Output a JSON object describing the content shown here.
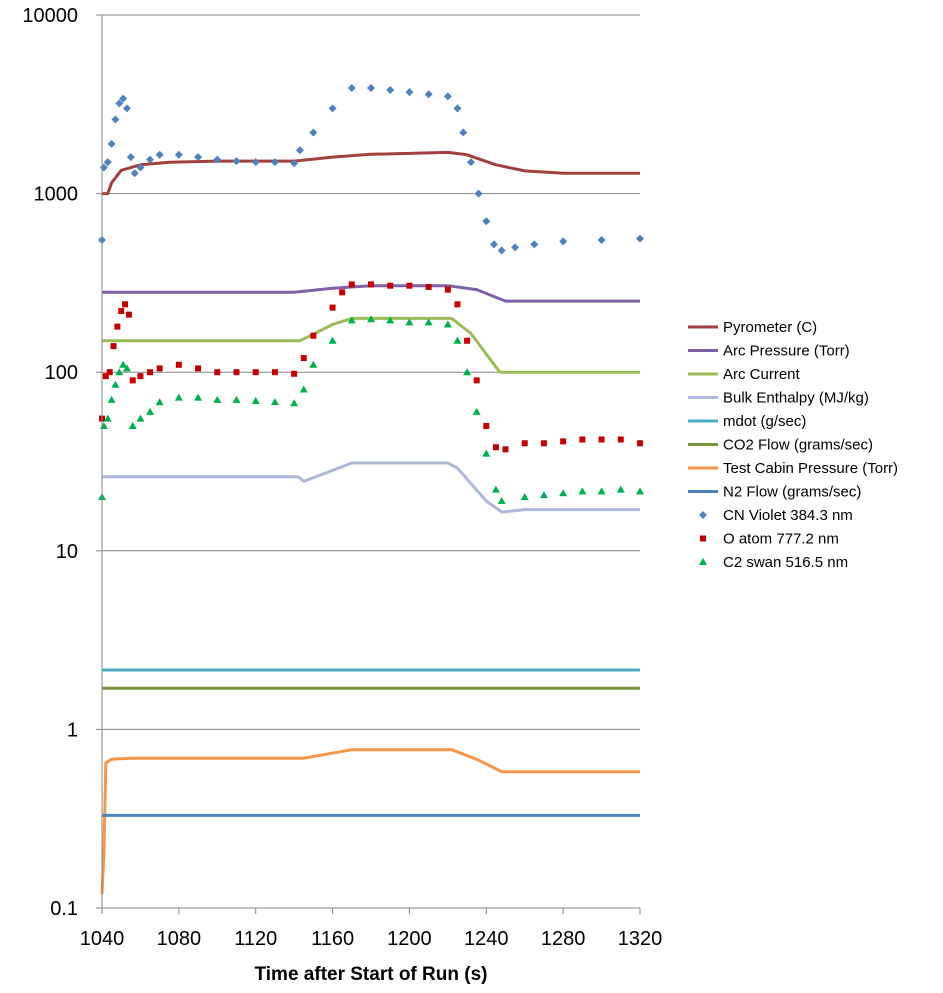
{
  "chart_data": {
    "type": "line",
    "title": "",
    "xlabel": "Time after Start of Run (s)",
    "ylabel": "",
    "xlim": [
      1040,
      1320
    ],
    "ylim": [
      0.1,
      10000
    ],
    "yscale": "log",
    "grid": "horizontal",
    "legend_position": "right",
    "x_ticks": [
      "1040",
      "1080",
      "1120",
      "1160",
      "1200",
      "1240",
      "1280",
      "1320"
    ],
    "y_ticks": [
      "0.1",
      "1",
      "10",
      "100",
      "1000",
      "10000"
    ],
    "series": [
      {
        "name": "Pyrometer (C)",
        "kind": "line",
        "color": "#A0413D",
        "points": [
          [
            1040,
            1000
          ],
          [
            1043,
            1000
          ],
          [
            1045,
            1150
          ],
          [
            1050,
            1350
          ],
          [
            1060,
            1450
          ],
          [
            1075,
            1500
          ],
          [
            1100,
            1520
          ],
          [
            1140,
            1520
          ],
          [
            1160,
            1600
          ],
          [
            1180,
            1660
          ],
          [
            1200,
            1680
          ],
          [
            1220,
            1700
          ],
          [
            1230,
            1650
          ],
          [
            1245,
            1450
          ],
          [
            1260,
            1340
          ],
          [
            1280,
            1300
          ],
          [
            1320,
            1300
          ]
        ]
      },
      {
        "name": "Arc Pressure (Torr)",
        "kind": "line",
        "color": "#7F5FA8",
        "points": [
          [
            1040,
            280
          ],
          [
            1140,
            280
          ],
          [
            1160,
            295
          ],
          [
            1180,
            305
          ],
          [
            1220,
            305
          ],
          [
            1235,
            290
          ],
          [
            1250,
            250
          ],
          [
            1320,
            250
          ]
        ]
      },
      {
        "name": "Arc Current",
        "kind": "line",
        "color": "#9BBB59",
        "points": [
          [
            1040,
            150
          ],
          [
            1143,
            150
          ],
          [
            1160,
            185
          ],
          [
            1170,
            200
          ],
          [
            1222,
            200
          ],
          [
            1232,
            165
          ],
          [
            1247,
            100
          ],
          [
            1320,
            100
          ]
        ]
      },
      {
        "name": "Bulk Enthalpy (MJ/kg)",
        "kind": "line",
        "color": "#AEB8D8",
        "points": [
          [
            1040,
            26
          ],
          [
            1142,
            26
          ],
          [
            1145,
            24.5
          ],
          [
            1170,
            31
          ],
          [
            1220,
            31
          ],
          [
            1225,
            29
          ],
          [
            1240,
            19
          ],
          [
            1248,
            16.5
          ],
          [
            1260,
            17
          ],
          [
            1320,
            17
          ]
        ]
      },
      {
        "name": "mdot (g/sec)",
        "kind": "line",
        "color": "#4BACC6",
        "points": [
          [
            1040,
            2.15
          ],
          [
            1320,
            2.15
          ]
        ]
      },
      {
        "name": "CO2 Flow (grams/sec)",
        "kind": "line",
        "color": "#77933C",
        "points": [
          [
            1040,
            1.7
          ],
          [
            1320,
            1.7
          ]
        ]
      },
      {
        "name": "Test Cabin Pressure (Torr)",
        "kind": "line",
        "color": "#F79646",
        "points": [
          [
            1040,
            0.12
          ],
          [
            1041,
            0.2
          ],
          [
            1042,
            0.65
          ],
          [
            1045,
            0.68
          ],
          [
            1055,
            0.69
          ],
          [
            1145,
            0.69
          ],
          [
            1170,
            0.77
          ],
          [
            1222,
            0.77
          ],
          [
            1235,
            0.68
          ],
          [
            1248,
            0.58
          ],
          [
            1320,
            0.58
          ]
        ]
      },
      {
        "name": "N2 Flow (grams/sec)",
        "kind": "line",
        "color": "#4F81BD",
        "points": [
          [
            1040,
            0.33
          ],
          [
            1320,
            0.33
          ]
        ]
      },
      {
        "name": "CN Violet 384.3 nm",
        "kind": "marker",
        "marker": "diamond",
        "color": "#4F81BD",
        "points": [
          [
            1040,
            550
          ],
          [
            1041,
            1400
          ],
          [
            1043,
            1500
          ],
          [
            1045,
            1900
          ],
          [
            1047,
            2600
          ],
          [
            1049,
            3200
          ],
          [
            1051,
            3400
          ],
          [
            1053,
            3000
          ],
          [
            1055,
            1600
          ],
          [
            1057,
            1300
          ],
          [
            1060,
            1400
          ],
          [
            1065,
            1550
          ],
          [
            1070,
            1650
          ],
          [
            1080,
            1650
          ],
          [
            1090,
            1600
          ],
          [
            1100,
            1550
          ],
          [
            1110,
            1520
          ],
          [
            1120,
            1500
          ],
          [
            1130,
            1500
          ],
          [
            1140,
            1480
          ],
          [
            1143,
            1750
          ],
          [
            1150,
            2200
          ],
          [
            1160,
            3000
          ],
          [
            1170,
            3900
          ],
          [
            1180,
            3900
          ],
          [
            1190,
            3800
          ],
          [
            1200,
            3700
          ],
          [
            1210,
            3600
          ],
          [
            1220,
            3500
          ],
          [
            1225,
            3000
          ],
          [
            1228,
            2200
          ],
          [
            1232,
            1500
          ],
          [
            1236,
            1000
          ],
          [
            1240,
            700
          ],
          [
            1244,
            520
          ],
          [
            1248,
            480
          ],
          [
            1255,
            500
          ],
          [
            1265,
            520
          ],
          [
            1280,
            540
          ],
          [
            1300,
            550
          ],
          [
            1320,
            560
          ]
        ]
      },
      {
        "name": "O atom 777.2 nm",
        "kind": "marker",
        "marker": "square",
        "color": "#C00000",
        "points": [
          [
            1040,
            55
          ],
          [
            1042,
            95
          ],
          [
            1044,
            100
          ],
          [
            1046,
            140
          ],
          [
            1048,
            180
          ],
          [
            1050,
            220
          ],
          [
            1052,
            240
          ],
          [
            1054,
            210
          ],
          [
            1056,
            90
          ],
          [
            1060,
            95
          ],
          [
            1065,
            100
          ],
          [
            1070,
            105
          ],
          [
            1080,
            110
          ],
          [
            1090,
            105
          ],
          [
            1100,
            100
          ],
          [
            1110,
            100
          ],
          [
            1120,
            100
          ],
          [
            1130,
            100
          ],
          [
            1140,
            98
          ],
          [
            1145,
            120
          ],
          [
            1150,
            160
          ],
          [
            1160,
            230
          ],
          [
            1165,
            280
          ],
          [
            1170,
            310
          ],
          [
            1180,
            310
          ],
          [
            1190,
            305
          ],
          [
            1200,
            305
          ],
          [
            1210,
            300
          ],
          [
            1220,
            290
          ],
          [
            1225,
            240
          ],
          [
            1230,
            150
          ],
          [
            1235,
            90
          ],
          [
            1240,
            50
          ],
          [
            1245,
            38
          ],
          [
            1250,
            37
          ],
          [
            1260,
            40
          ],
          [
            1270,
            40
          ],
          [
            1280,
            41
          ],
          [
            1290,
            42
          ],
          [
            1300,
            42
          ],
          [
            1310,
            42
          ],
          [
            1320,
            40
          ]
        ]
      },
      {
        "name": "C2 swan 516.5 nm",
        "kind": "marker",
        "marker": "triangle",
        "color": "#00B050",
        "points": [
          [
            1040,
            20
          ],
          [
            1041,
            50
          ],
          [
            1043,
            55
          ],
          [
            1045,
            70
          ],
          [
            1047,
            85
          ],
          [
            1049,
            100
          ],
          [
            1051,
            110
          ],
          [
            1053,
            105
          ],
          [
            1056,
            50
          ],
          [
            1060,
            55
          ],
          [
            1065,
            60
          ],
          [
            1070,
            68
          ],
          [
            1080,
            72
          ],
          [
            1090,
            72
          ],
          [
            1100,
            70
          ],
          [
            1110,
            70
          ],
          [
            1120,
            69
          ],
          [
            1130,
            68
          ],
          [
            1140,
            67
          ],
          [
            1145,
            80
          ],
          [
            1150,
            110
          ],
          [
            1160,
            150
          ],
          [
            1170,
            195
          ],
          [
            1180,
            198
          ],
          [
            1190,
            195
          ],
          [
            1200,
            190
          ],
          [
            1210,
            190
          ],
          [
            1220,
            185
          ],
          [
            1225,
            150
          ],
          [
            1230,
            100
          ],
          [
            1235,
            60
          ],
          [
            1240,
            35
          ],
          [
            1245,
            22
          ],
          [
            1248,
            19
          ],
          [
            1260,
            20
          ],
          [
            1270,
            20.5
          ],
          [
            1280,
            21
          ],
          [
            1290,
            21.5
          ],
          [
            1300,
            21.5
          ],
          [
            1310,
            22
          ],
          [
            1320,
            21.5
          ]
        ]
      }
    ]
  }
}
